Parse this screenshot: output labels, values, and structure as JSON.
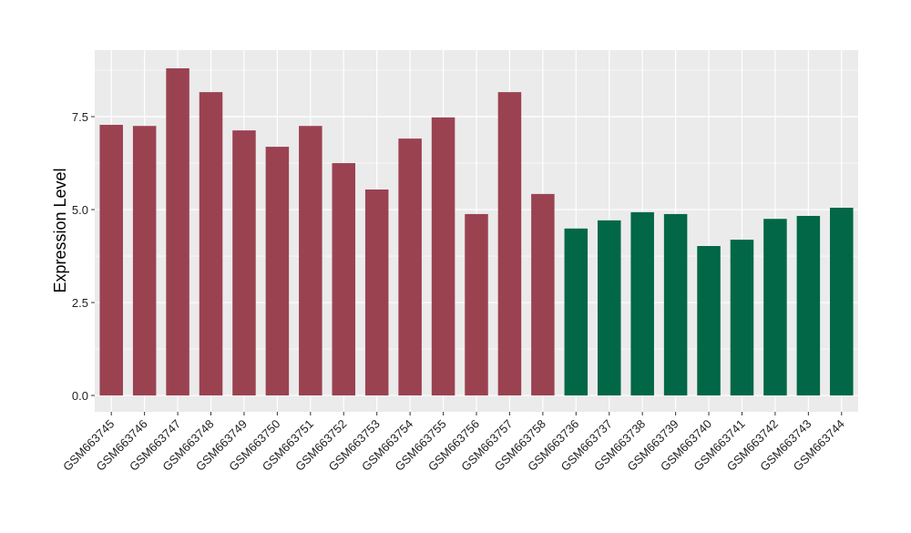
{
  "chart_data": {
    "type": "bar",
    "title": "",
    "xlabel": "",
    "ylabel": "Expression Level",
    "ylim": [
      -0.44,
      9.29
    ],
    "yticks": [
      "0.0",
      "2.5",
      "5.0",
      "7.5"
    ],
    "ytick_values": [
      0,
      2.5,
      5,
      7.5
    ],
    "grid": true,
    "legend": "none",
    "colors": {
      "group1": "#9B4251",
      "group2": "#016747",
      "panel": "#EBEBEB",
      "grid": "#FFFFFF"
    },
    "categories": [
      "GSM663745",
      "GSM663746",
      "GSM663747",
      "GSM663748",
      "GSM663749",
      "GSM663750",
      "GSM663751",
      "GSM663752",
      "GSM663753",
      "GSM663754",
      "GSM663755",
      "GSM663756",
      "GSM663757",
      "GSM663758",
      "GSM663736",
      "GSM663737",
      "GSM663738",
      "GSM663739",
      "GSM663740",
      "GSM663741",
      "GSM663742",
      "GSM663743",
      "GSM663744"
    ],
    "values": [
      7.28,
      7.25,
      8.8,
      8.16,
      7.13,
      6.69,
      7.25,
      6.25,
      5.54,
      6.91,
      7.48,
      4.88,
      8.16,
      5.42,
      4.49,
      4.71,
      4.93,
      4.88,
      4.02,
      4.19,
      4.75,
      4.83,
      5.05
    ],
    "groups": [
      1,
      1,
      1,
      1,
      1,
      1,
      1,
      1,
      1,
      1,
      1,
      1,
      1,
      1,
      2,
      2,
      2,
      2,
      2,
      2,
      2,
      2,
      2
    ]
  }
}
